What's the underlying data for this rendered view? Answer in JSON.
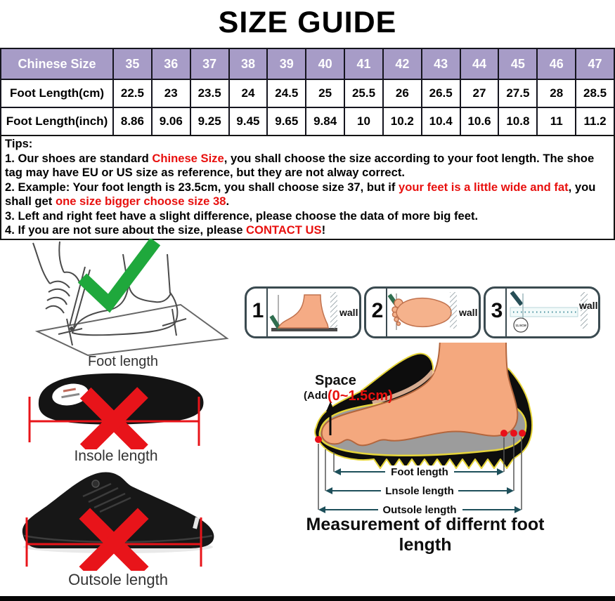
{
  "page": {
    "title": "SIZE GUIDE"
  },
  "size_table": {
    "header_label": "Chinese Size",
    "sizes": [
      "35",
      "36",
      "37",
      "38",
      "39",
      "40",
      "41",
      "42",
      "43",
      "44",
      "45",
      "46",
      "47"
    ],
    "rows": [
      {
        "label": "Foot Length(cm)",
        "values": [
          "22.5",
          "23",
          "23.5",
          "24",
          "24.5",
          "25",
          "25.5",
          "26",
          "26.5",
          "27",
          "27.5",
          "28",
          "28.5"
        ]
      },
      {
        "label": "Foot Length(inch)",
        "values": [
          "8.86",
          "9.06",
          "9.25",
          "9.45",
          "9.65",
          "9.84",
          "10",
          "10.2",
          "10.4",
          "10.6",
          "10.8",
          "11",
          "11.2"
        ]
      }
    ]
  },
  "tips": {
    "heading": "Tips:",
    "items": [
      {
        "segments": [
          {
            "text": "1. Our shoes are standard "
          },
          {
            "text": "Chinese Size",
            "red": true
          },
          {
            "text": ", you shall choose the size according to your foot length. The shoe tag may have EU or US size as reference, but they are not alway correct."
          }
        ]
      },
      {
        "segments": [
          {
            "text": "2. Example: Your foot length is 23.5cm, you shall choose size 37, but if "
          },
          {
            "text": "your feet is a little wide and fat",
            "red": true
          },
          {
            "text": ", you shall get "
          },
          {
            "text": "one size bigger choose size 38",
            "red": true
          },
          {
            "text": "."
          }
        ]
      },
      {
        "segments": [
          {
            "text": "3. Left and right feet have a slight difference, please choose the data of more big feet."
          }
        ]
      },
      {
        "segments": [
          {
            "text": "4. If you are not sure about the size, please "
          },
          {
            "text": "CONTACT US",
            "red": true
          },
          {
            "text": "!"
          }
        ]
      }
    ]
  },
  "illustrations": {
    "foot_tracing_caption": "Foot length",
    "insole_caption": "Insole length",
    "outsole_caption": "Outsole length",
    "wall_panels": [
      {
        "number": "1",
        "wall_label": "wall"
      },
      {
        "number": "2",
        "wall_label": "wall"
      },
      {
        "number": "3",
        "wall_label": "wall",
        "ruler_note": "11.5CM"
      }
    ],
    "measurement_diagram": {
      "space_label": "Space",
      "space_add_label": "(Add",
      "space_range_label": "(0~1.5cm)",
      "arrows": [
        "Foot length",
        "Lnsole length",
        "Outsole length"
      ],
      "caption": "Measurement of differnt foot length"
    }
  },
  "colors": {
    "header_purple": "#a79cc7",
    "accent_red": "#e8100e",
    "check_green": "#1fa83c",
    "skin": "#f4a87e",
    "insole_gray": "#9c9c9c",
    "outline_yellow": "#e6d53a"
  }
}
